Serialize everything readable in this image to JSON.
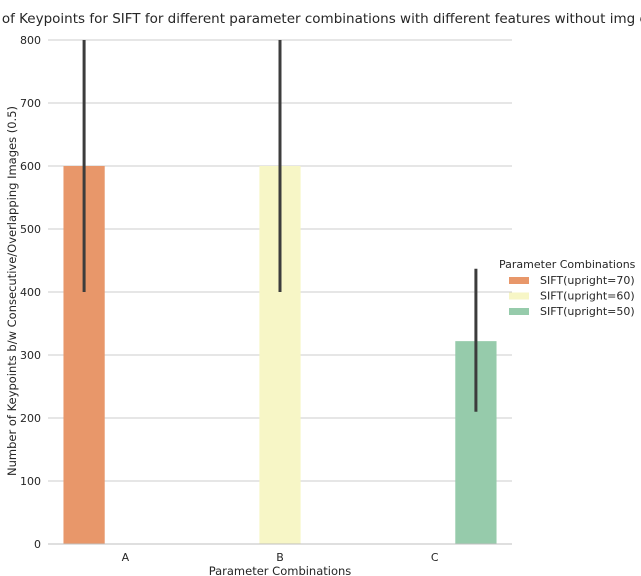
{
  "chart_data": {
    "type": "bar",
    "title": "ber of Keypoints for SIFT for different parameter combinations with different features without img enh",
    "xlabel": "Parameter Combinations",
    "ylabel": "Number of Keypoints b/w Consecutive/Overlapping Images (0.5)",
    "categories": [
      "A",
      "B",
      "C"
    ],
    "ylim": [
      0,
      800
    ],
    "yticks": [
      0,
      100,
      200,
      300,
      400,
      500,
      600,
      700,
      800
    ],
    "grid": true,
    "legend": {
      "title": "Parameter Combinations",
      "placement": "right"
    },
    "series": [
      {
        "name": "SIFT(upright=70)",
        "color": "#e8976a",
        "values": [
          600,
          null,
          null
        ],
        "err_low": [
          400,
          null,
          null
        ],
        "err_high": [
          800,
          null,
          null
        ]
      },
      {
        "name": "SIFT(upright=60)",
        "color": "#f7f6c6",
        "values": [
          null,
          600,
          null
        ],
        "err_low": [
          null,
          400,
          null
        ],
        "err_high": [
          null,
          800,
          null
        ]
      },
      {
        "name": "SIFT(upright=50)",
        "color": "#96cbab",
        "values": [
          null,
          null,
          322
        ],
        "err_low": [
          null,
          null,
          210
        ],
        "err_high": [
          null,
          null,
          437
        ]
      }
    ]
  }
}
